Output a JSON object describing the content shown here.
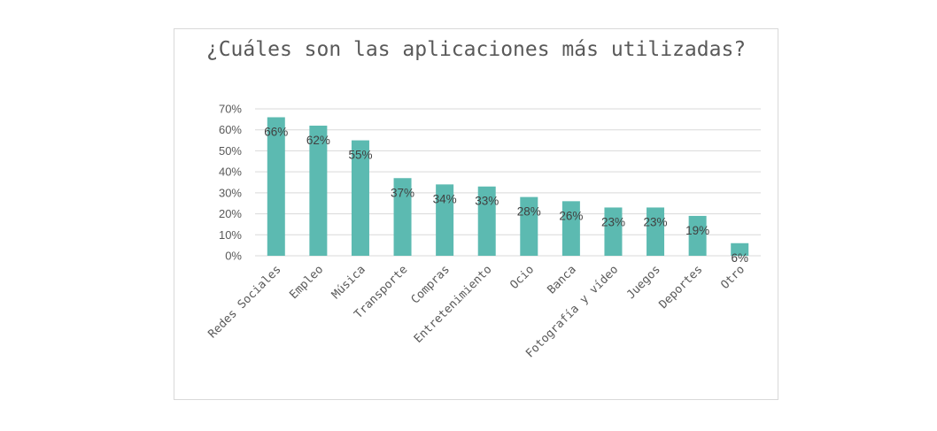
{
  "chart_data": {
    "type": "bar",
    "title": "¿Cuáles son las aplicaciones más utilizadas?",
    "categories": [
      "Redes Sociales",
      "Empleo",
      "Música",
      "Transporte",
      "Compras",
      "Entretenimiento",
      "Ocio",
      "Banca",
      "Fotografía y vídeo",
      "Juegos",
      "Deportes",
      "Otro"
    ],
    "values": [
      66,
      62,
      55,
      37,
      34,
      33,
      28,
      26,
      23,
      23,
      19,
      6
    ],
    "data_labels": [
      "66%",
      "62%",
      "55%",
      "37%",
      "34%",
      "33%",
      "28%",
      "26%",
      "23%",
      "23%",
      "19%",
      "6%"
    ],
    "y_ticks": [
      0,
      10,
      20,
      30,
      40,
      50,
      60,
      70
    ],
    "y_tick_labels": [
      "0%",
      "10%",
      "20%",
      "30%",
      "40%",
      "50%",
      "60%",
      "70%"
    ],
    "ylim": [
      0,
      70
    ],
    "grid": true,
    "legend": "none",
    "bar_color": "#5cbab1",
    "grid_color": "#d9d9d9"
  }
}
